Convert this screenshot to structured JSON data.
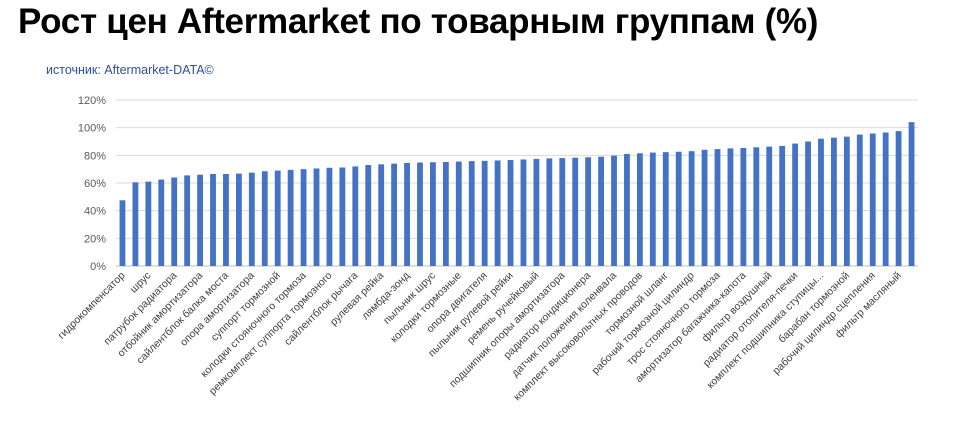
{
  "header": {
    "title": "Рост цен  Aftermarket по товарным группам (%)",
    "source": "источник: Aftermarket-DATA©"
  },
  "colors": {
    "bar": "#4472c4",
    "grid": "#d9d9d9",
    "title": "#000000",
    "source": "#2e4f9e"
  },
  "chart_data": {
    "type": "bar",
    "title": "Рост цен  Aftermarket по товарным группам (%)",
    "xlabel": "",
    "ylabel": "",
    "ylim": [
      0,
      120
    ],
    "yticks": [
      "0%",
      "20%",
      "40%",
      "60%",
      "80%",
      "100%",
      "120%"
    ],
    "grid": true,
    "legend": "none",
    "categories": [
      "гидрокомпенсатор",
      "",
      "шрус",
      "",
      "патрубок радиатора",
      "",
      "отбойник амортизатора",
      "",
      "сайлентблок балка моста",
      "",
      "опора амортизатора",
      "",
      "суппорт тормозной",
      "",
      "колодки стояночного тормоза",
      "",
      "ремкомплект суппорта тормозного",
      "",
      "сайлентблок рычага",
      "",
      "рулевая рейка",
      "",
      "лямбда-зонд",
      "",
      "пыльник шрус",
      "",
      "колодки тормозные",
      "",
      "опора двигателя",
      "",
      "пыльник рулевой рейки",
      "",
      "ремень ручейковый",
      "",
      "подшипник опоры амортизатора",
      "",
      "радиатор кондиционера",
      "",
      "датчик положения коленвала",
      "",
      "комплект высоковольтных проводов",
      "",
      "тормозной шланг",
      "",
      "рабочий тормозной цилиндр",
      "",
      "трос стояночного тормоза",
      "",
      "амортизатор багажника-капота",
      "",
      "фильтр воздушный",
      "",
      "радиатор отопителя-печки",
      "",
      "комплект подшипника ступицы...",
      "",
      "барабан тормозной",
      "",
      "рабочий цилиндр сцепления",
      "",
      "фильтр масляный",
      ""
    ],
    "values": [
      47.5,
      60.5,
      61.0,
      62.5,
      64.0,
      65.5,
      66.0,
      66.5,
      66.5,
      66.8,
      67.5,
      68.5,
      69.0,
      69.5,
      70.0,
      70.5,
      71.0,
      71.2,
      72.0,
      73.0,
      73.5,
      74.0,
      74.5,
      74.8,
      75.0,
      75.2,
      75.5,
      75.8,
      76.0,
      76.3,
      76.6,
      77.0,
      77.4,
      77.8,
      78.0,
      78.3,
      78.6,
      79.0,
      79.8,
      81.0,
      81.5,
      82.0,
      82.3,
      82.6,
      83.0,
      84.0,
      84.5,
      85.0,
      85.3,
      85.8,
      86.3,
      86.8,
      88.5,
      90.0,
      92.0,
      92.8,
      93.5,
      95.0,
      95.8,
      96.5,
      97.5,
      104.0
    ]
  }
}
